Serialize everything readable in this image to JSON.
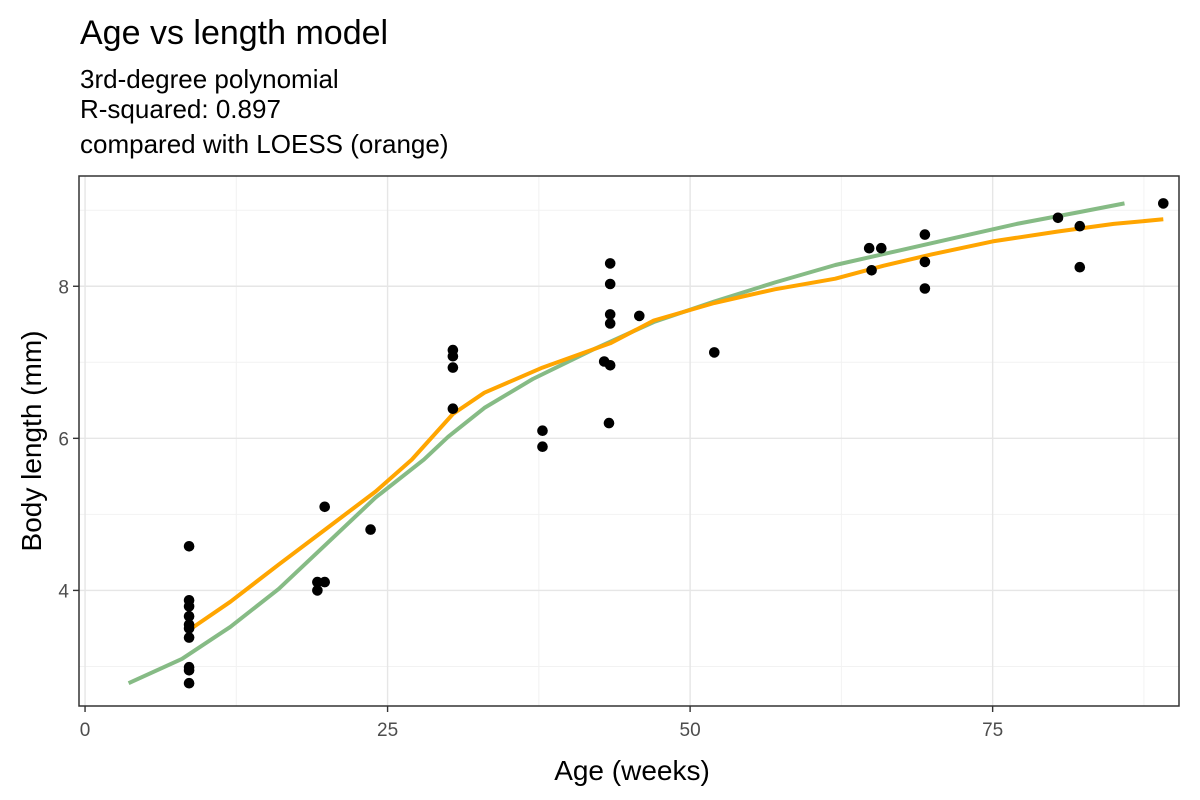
{
  "chart_data": {
    "type": "scatter",
    "title": "Age vs length model",
    "subtitle_lines": [
      "3rd-degree polynomial",
      "R-squared:  0.897",
      "compared with LOESS (orange)"
    ],
    "xlabel": "Age (weeks)",
    "ylabel": "Body length (mm)",
    "xlim": [
      -0.5,
      90.4
    ],
    "ylim": [
      2.48,
      9.45
    ],
    "x_ticks": [
      0,
      25,
      50,
      75
    ],
    "y_ticks": [
      4,
      6,
      8
    ],
    "x_minor_ticks": [
      12.5,
      37.5,
      62.5,
      87.5
    ],
    "y_minor_ticks": [
      3,
      5,
      7,
      9
    ],
    "grid": true,
    "points": [
      {
        "x": 8.6,
        "y": 4.58
      },
      {
        "x": 8.6,
        "y": 3.87
      },
      {
        "x": 8.6,
        "y": 3.79
      },
      {
        "x": 8.6,
        "y": 3.66
      },
      {
        "x": 8.6,
        "y": 3.55
      },
      {
        "x": 8.6,
        "y": 3.5
      },
      {
        "x": 8.6,
        "y": 3.38
      },
      {
        "x": 8.6,
        "y": 2.99
      },
      {
        "x": 8.6,
        "y": 2.95
      },
      {
        "x": 8.6,
        "y": 2.78
      },
      {
        "x": 19.2,
        "y": 4.11
      },
      {
        "x": 19.2,
        "y": 4.0
      },
      {
        "x": 19.8,
        "y": 5.1
      },
      {
        "x": 19.8,
        "y": 4.11
      },
      {
        "x": 23.6,
        "y": 4.8
      },
      {
        "x": 30.4,
        "y": 7.16
      },
      {
        "x": 30.4,
        "y": 7.08
      },
      {
        "x": 30.4,
        "y": 6.93
      },
      {
        "x": 30.4,
        "y": 6.39
      },
      {
        "x": 37.8,
        "y": 6.1
      },
      {
        "x": 37.8,
        "y": 5.89
      },
      {
        "x": 42.9,
        "y": 7.01
      },
      {
        "x": 43.3,
        "y": 6.2
      },
      {
        "x": 43.4,
        "y": 8.3
      },
      {
        "x": 43.4,
        "y": 8.03
      },
      {
        "x": 43.4,
        "y": 7.63
      },
      {
        "x": 43.4,
        "y": 7.51
      },
      {
        "x": 43.4,
        "y": 6.96
      },
      {
        "x": 45.8,
        "y": 7.61
      },
      {
        "x": 52.0,
        "y": 7.13
      },
      {
        "x": 64.8,
        "y": 8.5
      },
      {
        "x": 65.0,
        "y": 8.21
      },
      {
        "x": 65.8,
        "y": 8.5
      },
      {
        "x": 69.4,
        "y": 8.68
      },
      {
        "x": 69.4,
        "y": 8.32
      },
      {
        "x": 69.4,
        "y": 7.97
      },
      {
        "x": 80.4,
        "y": 8.9
      },
      {
        "x": 82.2,
        "y": 8.79
      },
      {
        "x": 82.2,
        "y": 8.25
      },
      {
        "x": 89.1,
        "y": 9.09
      }
    ],
    "series": [
      {
        "color": "#7fb77e",
        "points": [
          {
            "x": 3.6,
            "y": 2.78
          },
          {
            "x": 8,
            "y": 3.1
          },
          {
            "x": 12,
            "y": 3.52
          },
          {
            "x": 16,
            "y": 4.02
          },
          {
            "x": 20,
            "y": 4.62
          },
          {
            "x": 24,
            "y": 5.22
          },
          {
            "x": 28,
            "y": 5.72
          },
          {
            "x": 30,
            "y": 6.02
          },
          {
            "x": 33,
            "y": 6.4
          },
          {
            "x": 37,
            "y": 6.78
          },
          {
            "x": 42,
            "y": 7.17
          },
          {
            "x": 47,
            "y": 7.53
          },
          {
            "x": 52,
            "y": 7.8
          },
          {
            "x": 57,
            "y": 8.05
          },
          {
            "x": 62,
            "y": 8.28
          },
          {
            "x": 67,
            "y": 8.46
          },
          {
            "x": 72,
            "y": 8.64
          },
          {
            "x": 77,
            "y": 8.82
          },
          {
            "x": 82,
            "y": 8.97
          },
          {
            "x": 85.9,
            "y": 9.09
          }
        ]
      },
      {
        "color": "#ffa500",
        "points": [
          {
            "x": 8.6,
            "y": 3.48
          },
          {
            "x": 12,
            "y": 3.85
          },
          {
            "x": 16,
            "y": 4.34
          },
          {
            "x": 20,
            "y": 4.82
          },
          {
            "x": 24,
            "y": 5.3
          },
          {
            "x": 27,
            "y": 5.72
          },
          {
            "x": 30.4,
            "y": 6.32
          },
          {
            "x": 33,
            "y": 6.6
          },
          {
            "x": 37.8,
            "y": 6.93
          },
          {
            "x": 43.4,
            "y": 7.25
          },
          {
            "x": 47,
            "y": 7.55
          },
          {
            "x": 52,
            "y": 7.78
          },
          {
            "x": 57,
            "y": 7.96
          },
          {
            "x": 62,
            "y": 8.1
          },
          {
            "x": 66,
            "y": 8.27
          },
          {
            "x": 70,
            "y": 8.42
          },
          {
            "x": 75,
            "y": 8.59
          },
          {
            "x": 80.4,
            "y": 8.72
          },
          {
            "x": 85,
            "y": 8.82
          },
          {
            "x": 89.1,
            "y": 8.88
          }
        ]
      }
    ]
  }
}
